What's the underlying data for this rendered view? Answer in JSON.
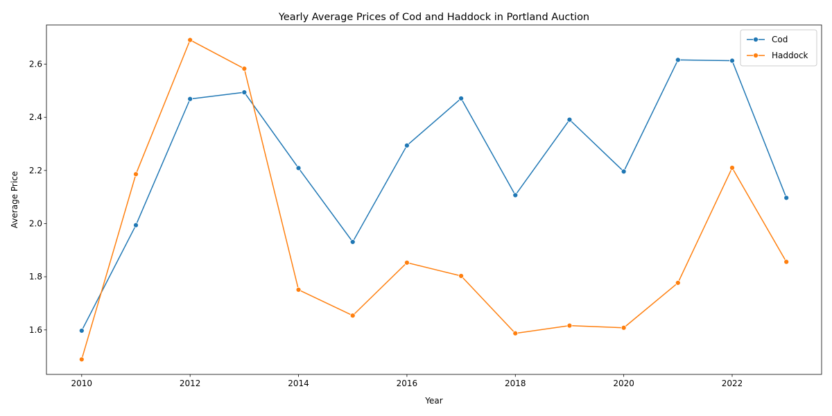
{
  "chart_data": {
    "type": "line",
    "title": "Yearly Average Prices of Cod and Haddock in Portland Auction",
    "xlabel": "Year",
    "ylabel": "Average Price",
    "x": [
      2010,
      2011,
      2012,
      2013,
      2014,
      2015,
      2016,
      2017,
      2018,
      2019,
      2020,
      2021,
      2022,
      2023
    ],
    "series": [
      {
        "name": "Cod",
        "color": "#1f77b4",
        "values": [
          1.597,
          1.994,
          2.469,
          2.494,
          2.209,
          1.931,
          2.294,
          2.471,
          2.107,
          2.391,
          2.196,
          2.616,
          2.613,
          2.097
        ]
      },
      {
        "name": "Haddock",
        "color": "#ff7f0e",
        "values": [
          1.489,
          2.186,
          2.691,
          2.583,
          1.751,
          1.654,
          1.853,
          1.803,
          1.587,
          1.616,
          1.608,
          1.777,
          2.21,
          1.856
        ]
      }
    ],
    "xlim": [
      2009.35,
      2023.65
    ],
    "ylim": [
      1.4325,
      2.7475
    ],
    "xticks": [
      2010,
      2012,
      2014,
      2016,
      2018,
      2020,
      2022
    ],
    "yticks": [
      1.6,
      1.8,
      2.0,
      2.2,
      2.4,
      2.6
    ],
    "ytick_labels": [
      "1.6",
      "1.8",
      "2.0",
      "2.2",
      "2.4",
      "2.6"
    ],
    "grid": false,
    "legend_position": "top-right"
  }
}
